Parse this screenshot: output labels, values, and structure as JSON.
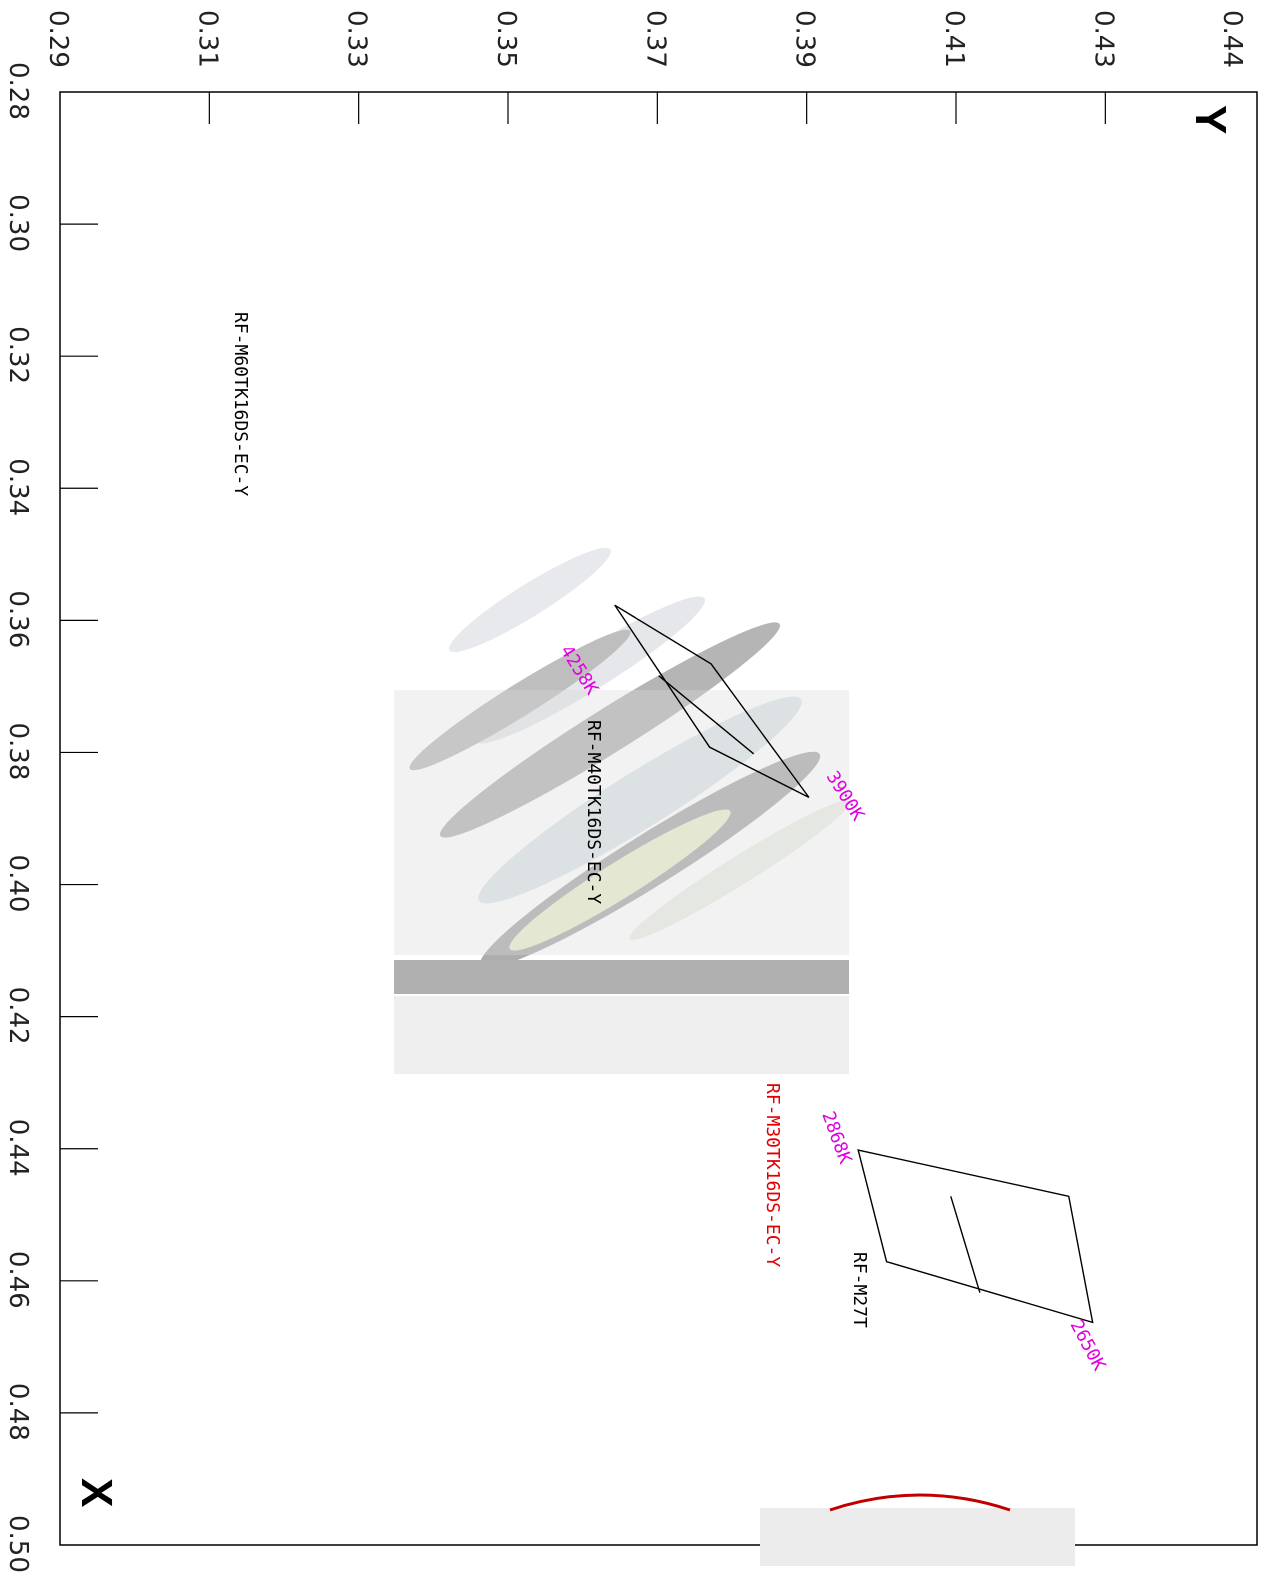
{
  "chart_data": {
    "type": "scatter",
    "title": "",
    "x_axis": {
      "label": "X",
      "range": [
        0.28,
        0.5
      ],
      "ticks": [
        "0.28",
        "0.30",
        "0.32",
        "0.34",
        "0.36",
        "0.38",
        "0.40",
        "0.42",
        "0.44",
        "0.46",
        "0.48",
        "0.50"
      ]
    },
    "y_axis": {
      "label": "Y",
      "range": [
        0.29,
        0.44
      ],
      "ticks": [
        "0.29",
        "0.31",
        "0.33",
        "0.35",
        "0.37",
        "0.39",
        "0.41",
        "0.43",
        "0.44"
      ]
    },
    "grid": false,
    "regions": [
      {
        "name": "RF-M40TK16DS-EC-Y",
        "color": "#000000",
        "corners": [
          [
            0.3577,
            0.3643
          ],
          [
            0.3792,
            0.377
          ],
          [
            0.3868,
            0.3903
          ],
          [
            0.3666,
            0.3772
          ]
        ],
        "divider": [
          [
            0.3684,
            0.3702
          ],
          [
            0.3802,
            0.3829
          ]
        ],
        "cct_labels": [
          {
            "text": "4258K",
            "color": "#e000e0"
          },
          {
            "text": "3900K",
            "color": "#e000e0"
          }
        ]
      },
      {
        "name": "RF-M27T",
        "color": "#000000",
        "corners": [
          [
            0.4402,
            0.3969
          ],
          [
            0.4571,
            0.4007
          ],
          [
            0.4663,
            0.4283
          ],
          [
            0.4472,
            0.4251
          ]
        ],
        "divider": [
          [
            0.4472,
            0.4093
          ],
          [
            0.4618,
            0.4132
          ]
        ],
        "cct_labels": [
          {
            "text": "2868K",
            "color": "#e000e0"
          },
          {
            "text": "2650K",
            "color": "#e000e0"
          }
        ]
      }
    ],
    "annotations": [
      {
        "text": "RF-M60TK16DS-EC-Y",
        "color": "#000000"
      },
      {
        "text": "RF-M30TK16DS-EC-Y",
        "color": "#e00000"
      }
    ]
  }
}
